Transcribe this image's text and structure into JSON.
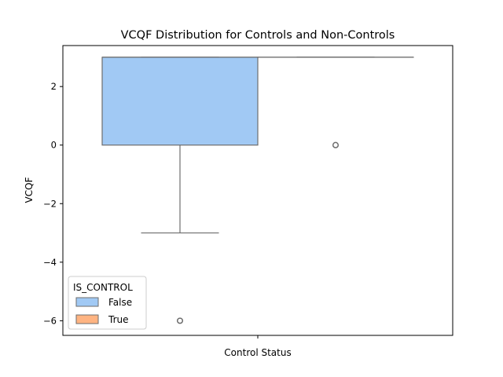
{
  "chart_data": {
    "type": "box",
    "title": "VCQF Distribution for Controls and Non-Controls",
    "xlabel": "Control Status",
    "ylabel": "VCQF",
    "ylim": [
      -6.5,
      3.4
    ],
    "yticks": [
      2,
      0,
      -2,
      -4,
      -6
    ],
    "ytick_labels": [
      "2",
      "0",
      "−2",
      "−4",
      "−6"
    ],
    "grid": false,
    "legend": {
      "title": "IS_CONTROL",
      "placement": "lower-left",
      "entries": [
        {
          "label": "False",
          "color": "#a1c9f4"
        },
        {
          "label": "True",
          "color": "#ffb482"
        }
      ]
    },
    "series": [
      {
        "name": "False",
        "color": "#a1c9f4",
        "q1": 0,
        "median": 3,
        "q3": 3,
        "whisker_low": -3,
        "whisker_high": 3,
        "outliers": [
          -6
        ]
      },
      {
        "name": "True",
        "color": "#ffb482",
        "q1": 3,
        "median": 3,
        "q3": 3,
        "whisker_low": 3,
        "whisker_high": 3,
        "outliers": [
          0
        ]
      }
    ]
  }
}
